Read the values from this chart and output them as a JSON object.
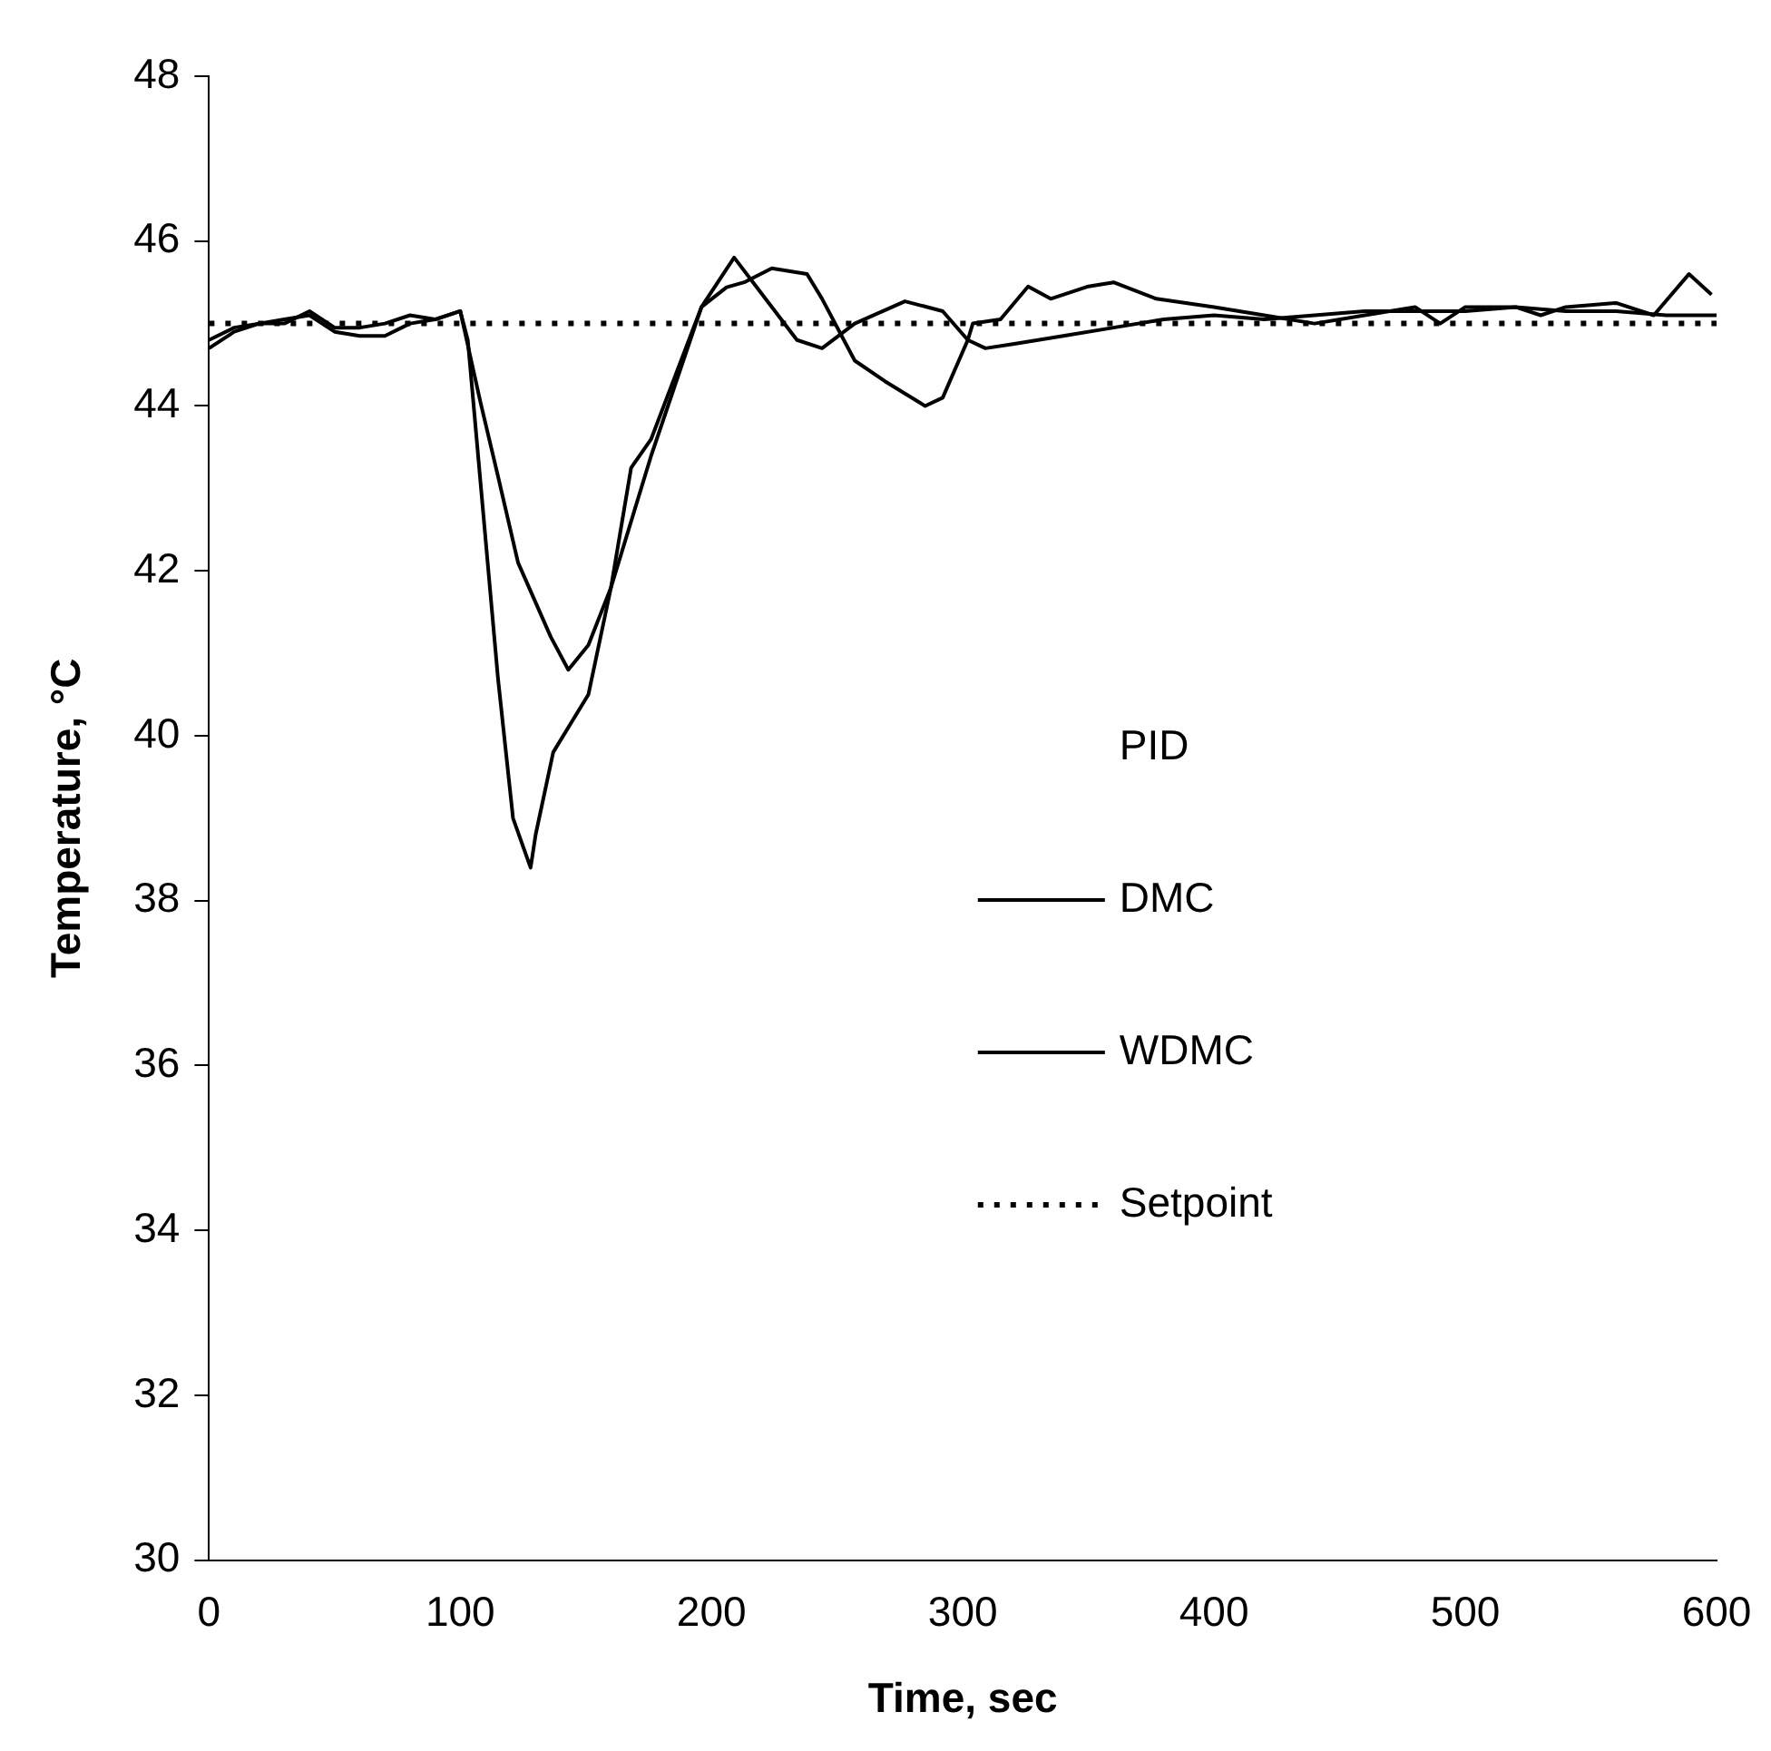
{
  "chart_data": {
    "type": "line",
    "xlabel": "Time, sec",
    "ylabel": "Temperature, °C",
    "legend_title": "PID",
    "legend": "right",
    "grid": false,
    "marker": "none",
    "xlim": [
      0,
      600
    ],
    "xticks": [
      0,
      100,
      200,
      300,
      400,
      500,
      600
    ],
    "ylim": [
      30,
      48
    ],
    "yticks": [
      30,
      32,
      34,
      36,
      38,
      40,
      42,
      44,
      46,
      48
    ],
    "series": [
      {
        "name": "DMC",
        "color": "#000000",
        "line_style": "solid",
        "x": [
          0,
          10,
          20,
          30,
          40,
          50,
          60,
          70,
          80,
          90,
          100,
          103,
          115,
          121,
          128,
          130,
          137,
          151,
          160,
          176,
          196,
          209,
          219,
          234,
          244,
          257,
          277,
          292,
          302,
          309,
          320,
          340,
          360,
          380,
          400,
          420,
          440,
          460,
          480,
          500,
          520,
          540,
          560,
          580,
          600
        ],
        "values": [
          44.8,
          44.95,
          45.0,
          45.05,
          45.1,
          44.9,
          44.85,
          44.85,
          45.0,
          45.05,
          45.15,
          44.8,
          40.7,
          39.0,
          38.4,
          38.8,
          39.8,
          40.5,
          41.8,
          43.4,
          45.2,
          45.8,
          45.4,
          44.8,
          44.7,
          45.0,
          45.27,
          45.15,
          44.8,
          44.7,
          44.75,
          44.85,
          44.95,
          45.05,
          45.1,
          45.05,
          45.1,
          45.15,
          45.15,
          45.15,
          45.2,
          45.15,
          45.15,
          45.1,
          45.1
        ]
      },
      {
        "name": "WDMC",
        "color": "#000000",
        "line_style": "solid",
        "x": [
          0,
          10,
          20,
          30,
          40,
          50,
          60,
          70,
          80,
          90,
          100,
          108,
          115,
          123,
          136,
          143,
          151,
          160,
          168,
          176,
          196,
          206,
          213,
          224,
          238,
          244,
          257,
          269,
          285,
          292,
          302,
          304,
          315,
          326,
          335,
          350,
          360,
          377,
          400,
          420,
          440,
          460,
          480,
          490,
          500,
          520,
          530,
          540,
          560,
          575,
          589,
          598
        ],
        "values": [
          44.7,
          44.9,
          45.0,
          45.0,
          45.15,
          44.95,
          44.95,
          45.0,
          45.1,
          45.05,
          45.15,
          44.05,
          43.15,
          42.1,
          41.2,
          40.8,
          41.1,
          41.8,
          43.25,
          43.6,
          45.2,
          45.44,
          45.5,
          45.67,
          45.6,
          45.3,
          44.55,
          44.3,
          44.0,
          44.1,
          44.8,
          45.0,
          45.05,
          45.45,
          45.3,
          45.45,
          45.5,
          45.3,
          45.2,
          45.1,
          45.0,
          45.1,
          45.2,
          45.0,
          45.2,
          45.2,
          45.1,
          45.2,
          45.25,
          45.1,
          45.6,
          45.35
        ]
      },
      {
        "name": "Setpoint",
        "color": "#000000",
        "line_style": "dotted",
        "x": [
          0,
          600
        ],
        "values": [
          45,
          45
        ]
      }
    ]
  }
}
